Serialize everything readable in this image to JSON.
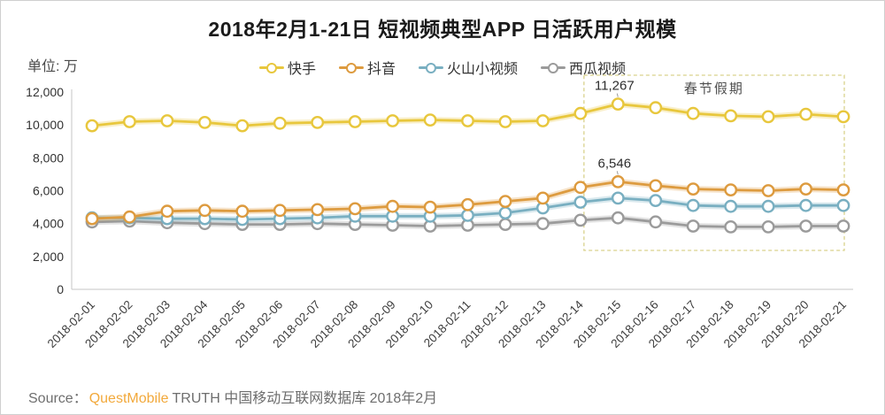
{
  "title": "2018年2月1-21日 短视频典型APP 日活跃用户规模",
  "unit_label": "单位: 万",
  "source": {
    "prefix": "Source：",
    "brand": "QuestMobile",
    "brand_color": "#F2A93B",
    "rest": "TRUTH 中国移动互联网数据库 2018年2月"
  },
  "chart_data": {
    "type": "line",
    "title": "2018年2月1-21日 短视频典型APP 日活跃用户规模",
    "ylabel": "单位: 万",
    "ylim": [
      0,
      12000
    ],
    "yticks": [
      0,
      2000,
      4000,
      6000,
      8000,
      10000,
      12000
    ],
    "grid": false,
    "legend_position": "top",
    "x": [
      "2018-02-01",
      "2018-02-02",
      "2018-02-03",
      "2018-02-04",
      "2018-02-05",
      "2018-02-06",
      "2018-02-07",
      "2018-02-08",
      "2018-02-09",
      "2018-02-10",
      "2018-02-11",
      "2018-02-12",
      "2018-02-13",
      "2018-02-14",
      "2018-02-15",
      "2018-02-16",
      "2018-02-17",
      "2018-02-18",
      "2018-02-19",
      "2018-02-20",
      "2018-02-21"
    ],
    "series": [
      {
        "key": "kuaishou",
        "name": "快手",
        "color": "#E8C73D",
        "values": [
          9950,
          10200,
          10250,
          10150,
          9950,
          10100,
          10150,
          10200,
          10250,
          10300,
          10250,
          10200,
          10250,
          10700,
          11267,
          11050,
          10700,
          10550,
          10500,
          10650,
          10500
        ]
      },
      {
        "key": "douyin",
        "name": "抖音",
        "color": "#DD9B3F",
        "values": [
          4300,
          4400,
          4750,
          4800,
          4750,
          4800,
          4850,
          4900,
          5050,
          5000,
          5150,
          5350,
          5550,
          6200,
          6546,
          6300,
          6100,
          6050,
          6000,
          6100,
          6050
        ]
      },
      {
        "key": "huoshan",
        "name": "火山小视频",
        "color": "#79AFC1",
        "values": [
          4350,
          4350,
          4300,
          4300,
          4250,
          4300,
          4350,
          4450,
          4450,
          4450,
          4500,
          4650,
          4950,
          5300,
          5550,
          5400,
          5100,
          5050,
          5050,
          5100,
          5100
        ]
      },
      {
        "key": "xigua",
        "name": "西瓜视频",
        "color": "#9B9B9B",
        "values": [
          4100,
          4150,
          4050,
          4000,
          3950,
          3950,
          4000,
          3950,
          3900,
          3850,
          3900,
          3950,
          4000,
          4200,
          4350,
          4100,
          3850,
          3800,
          3800,
          3850,
          3850
        ]
      }
    ],
    "annotations": [
      {
        "text": "11,267",
        "date": "2018-02-15",
        "value": 11267,
        "series": "快手"
      },
      {
        "text": "6,546",
        "date": "2018-02-15",
        "value": 6546,
        "series": "抖音"
      }
    ],
    "holiday_box": {
      "label": "春节假期",
      "date_from": "2018-02-14",
      "date_to": "2018-02-21",
      "border_color": "#D9D28C"
    }
  }
}
